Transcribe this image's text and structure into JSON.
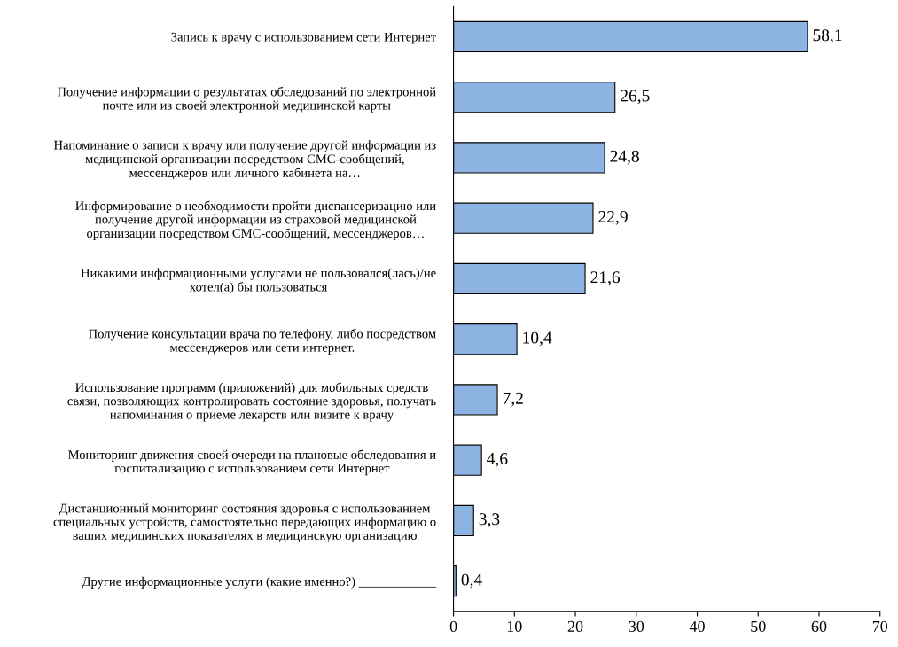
{
  "chart_data": {
    "type": "bar",
    "orientation": "horizontal",
    "categories": [
      "Запись к врачу с использованием сети Интернет",
      "Получение информации о результатах обследований по электронной\nпочте или из своей электронной медицинской карты",
      "Напоминание о записи к врачу или получение другой информации из\nмедицинской организации посредством СМС-сообщений,\nмессенджеров или личного кабинета на…",
      "Информирование о необходимости пройти диспансеризацию или\nполучение другой информации из страховой медицинской\nорганизации посредством СМС-сообщений, мессенджеров…",
      "Никакими информационными услугами не пользовался(лась)/не\nхотел(а) бы пользоваться",
      "Получение консультации врача по телефону, либо посредством\nмессенджеров или сети интернет.",
      "Использование программ (приложений) для мобильных средств\nсвязи, позволяющих контролировать состояние здоровья, получать\nнапоминания о приеме лекарств или визите к врачу",
      "Мониторинг движения своей очереди на плановые обследования и\nгоспитализацию с использованием сети Интернет",
      "Дистанционный мониторинг состояния здоровья с использованием\nспециальных устройств, самостоятельно передающих информацию о\nваших медицинских показателях в медицинскую организацию",
      "Другие информационные услуги (какие именно?) ____________"
    ],
    "values": [
      58.1,
      26.5,
      24.8,
      22.9,
      21.6,
      10.4,
      7.2,
      4.6,
      3.3,
      0.4
    ],
    "value_labels": [
      "58,1",
      "26,5",
      "24,8",
      "22,9",
      "21,6",
      "10,4",
      "7,2",
      "4,6",
      "3,3",
      "0,4"
    ],
    "color": "#8db3e2",
    "xlim": [
      0,
      70
    ],
    "xticks": [
      0,
      10,
      20,
      30,
      40,
      50,
      60,
      70
    ],
    "grid": false,
    "legend": false
  }
}
